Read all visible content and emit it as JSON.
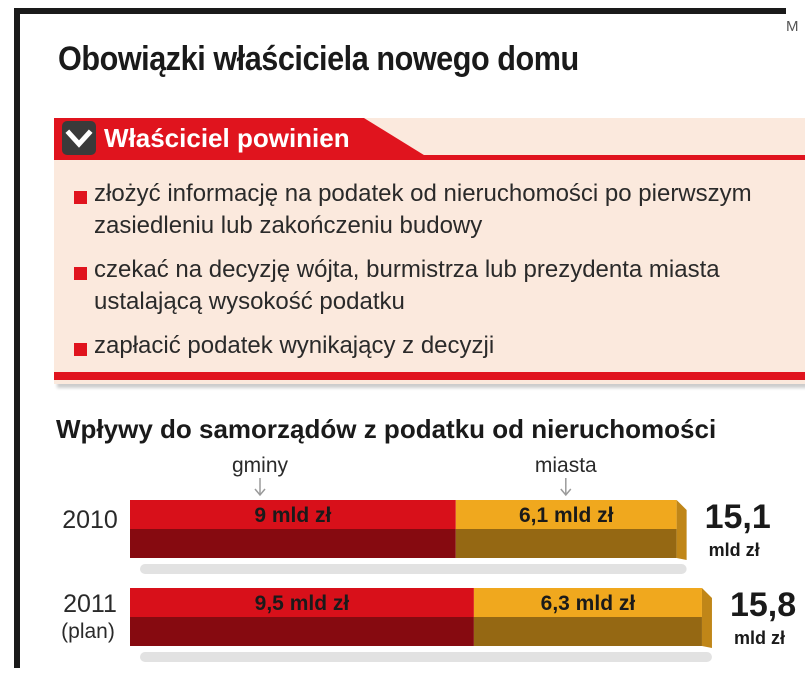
{
  "corner_text": "M",
  "title": "Obowiązki właściciela nowego domu",
  "box": {
    "header_label": "Właściciel powinien",
    "items": [
      "złożyć informację na podatek od nieruchomości po pierwszym zasiedleniu lub zakończeniu budowy",
      "czekać na decyzję wójta, burmistrza lub prezydenta miasta ustalającą wysokość podatku",
      "zapłacić podatek wynikający z decyzji"
    ]
  },
  "colors": {
    "accent_red": "#e0141e",
    "series_gminy": "#d8101a",
    "series_miasta": "#f0a81e",
    "box_background": "#fbe9dd"
  },
  "chart_data": {
    "type": "bar",
    "stacked": true,
    "orientation": "horizontal",
    "title": "Wpływy do samorządów z podatku od nieruchomości",
    "categories": [
      {
        "label": "2010",
        "sublabel": ""
      },
      {
        "label": "2011",
        "sublabel": "(plan)"
      }
    ],
    "unit": "mld zł",
    "series": [
      {
        "name": "gminy",
        "values": [
          9,
          9.5
        ],
        "labels": [
          "9 mld zł",
          "9,5 mld zł"
        ],
        "color": "#d8101a"
      },
      {
        "name": "miasta",
        "values": [
          6.1,
          6.3
        ],
        "labels": [
          "6,1 mld zł",
          "6,3 mld zł"
        ],
        "color": "#f0a81e"
      }
    ],
    "totals": [
      {
        "value": "15,1",
        "unit": "mld zł"
      },
      {
        "value": "15,8",
        "unit": "mld zł"
      }
    ]
  }
}
